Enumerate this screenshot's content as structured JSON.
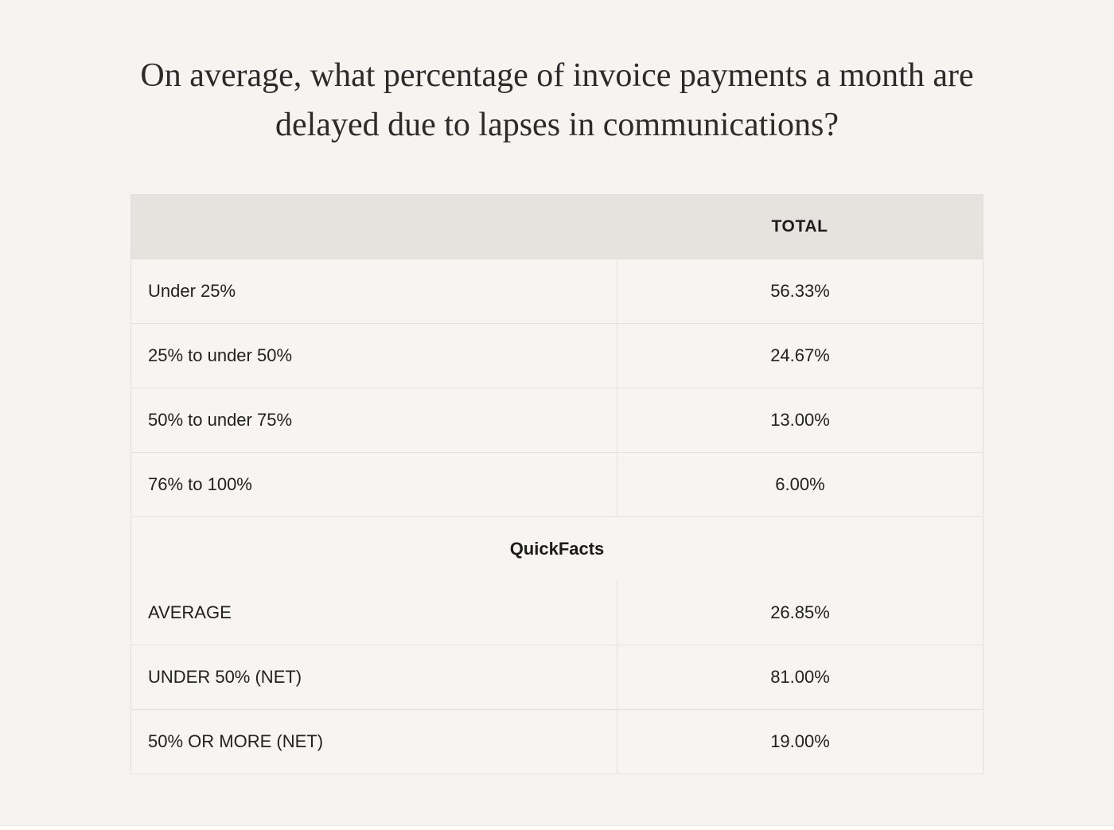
{
  "page": {
    "title_lines": [
      "On average, what percentage of invoice payments a month are",
      "delayed due to lapses in communications?"
    ]
  },
  "chart_data": {
    "type": "table",
    "title": "On average, what percentage of invoice payments a month are delayed due to lapses in communications?",
    "columns": [
      "",
      "TOTAL"
    ],
    "response_rows": [
      {
        "label": "Under 25%",
        "value": "56.33%"
      },
      {
        "label": "25% to under 50%",
        "value": "24.67%"
      },
      {
        "label": "50% to under 75%",
        "value": "13.00%"
      },
      {
        "label": "76% to 100%",
        "value": "6.00%"
      }
    ],
    "section_label": "QuickFacts",
    "quickfacts_rows": [
      {
        "label": "AVERAGE",
        "value": "26.85%"
      },
      {
        "label": "UNDER 50% (NET)",
        "value": "81.00%"
      },
      {
        "label": "50% OR MORE (NET)",
        "value": "19.00%"
      }
    ],
    "layout": {
      "legend_position": "none",
      "grid": "table-borders",
      "value_alignment": "center",
      "label_alignment": "left"
    }
  },
  "colors": {
    "page_background": "#f5f4f1",
    "header_background": "#e5e3dd",
    "cell_background": "#f6f5f2",
    "border": "#e3e1db",
    "text": "#212121"
  }
}
